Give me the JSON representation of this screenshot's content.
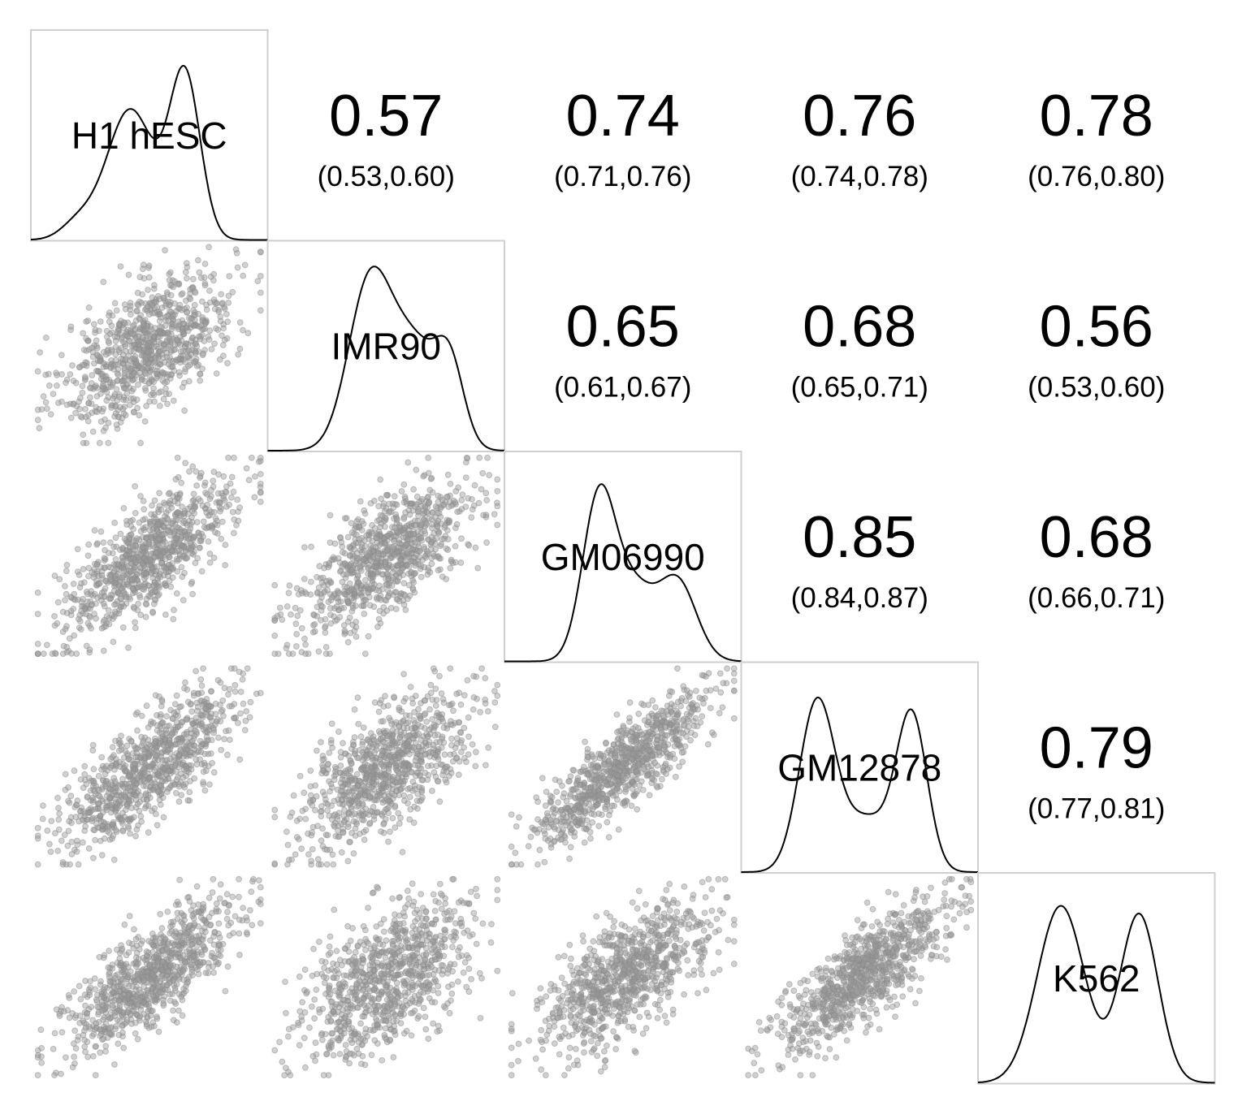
{
  "chart_data": {
    "type": "scatter",
    "subtype": "pairs-correlation-matrix",
    "variables": [
      "H1 hESC",
      "IMR90",
      "GM06990",
      "GM12878",
      "K562"
    ],
    "upper_panels": [
      {
        "row": 0,
        "col": 1,
        "value": "0.57",
        "ci": "(0.53,0.60)",
        "r": 0.57
      },
      {
        "row": 0,
        "col": 2,
        "value": "0.74",
        "ci": "(0.71,0.76)",
        "r": 0.74
      },
      {
        "row": 0,
        "col": 3,
        "value": "0.76",
        "ci": "(0.74,0.78)",
        "r": 0.76
      },
      {
        "row": 0,
        "col": 4,
        "value": "0.78",
        "ci": "(0.76,0.80)",
        "r": 0.78
      },
      {
        "row": 1,
        "col": 2,
        "value": "0.65",
        "ci": "(0.61,0.67)",
        "r": 0.65
      },
      {
        "row": 1,
        "col": 3,
        "value": "0.68",
        "ci": "(0.65,0.71)",
        "r": 0.68
      },
      {
        "row": 1,
        "col": 4,
        "value": "0.56",
        "ci": "(0.53,0.60)",
        "r": 0.56
      },
      {
        "row": 2,
        "col": 3,
        "value": "0.85",
        "ci": "(0.84,0.87)",
        "r": 0.85
      },
      {
        "row": 2,
        "col": 4,
        "value": "0.68",
        "ci": "(0.66,0.71)",
        "r": 0.68
      },
      {
        "row": 3,
        "col": 4,
        "value": "0.79",
        "ci": "(0.77,0.81)",
        "r": 0.79
      }
    ],
    "density_shapes": [
      {
        "variable": "H1 hESC",
        "peaks": [
          {
            "mu": 0.42,
            "sd": 0.1,
            "h": 0.62
          },
          {
            "mu": 0.65,
            "sd": 0.065,
            "h": 0.78
          },
          {
            "mu": 0.2,
            "sd": 0.07,
            "h": 0.08
          }
        ]
      },
      {
        "variable": "IMR90",
        "peaks": [
          {
            "mu": 0.43,
            "sd": 0.09,
            "h": 0.78
          },
          {
            "mu": 0.62,
            "sd": 0.1,
            "h": 0.48
          },
          {
            "mu": 0.77,
            "sd": 0.06,
            "h": 0.35
          }
        ]
      },
      {
        "variable": "GM06990",
        "peaks": [
          {
            "mu": 0.4,
            "sd": 0.07,
            "h": 0.78
          },
          {
            "mu": 0.55,
            "sd": 0.08,
            "h": 0.32
          },
          {
            "mu": 0.73,
            "sd": 0.08,
            "h": 0.38
          }
        ]
      },
      {
        "variable": "GM12878",
        "peaks": [
          {
            "mu": 0.32,
            "sd": 0.075,
            "h": 0.8
          },
          {
            "mu": 0.53,
            "sd": 0.1,
            "h": 0.25
          },
          {
            "mu": 0.72,
            "sd": 0.065,
            "h": 0.73
          }
        ]
      },
      {
        "variable": "K562",
        "peaks": [
          {
            "mu": 0.35,
            "sd": 0.1,
            "h": 0.84
          },
          {
            "mu": 0.68,
            "sd": 0.08,
            "h": 0.8
          }
        ]
      }
    ],
    "scatter_points_per_panel": 900,
    "point_color": "#9a9a9a",
    "frame_color": "#cfcfcf",
    "grid": false,
    "axes_visible": false
  }
}
